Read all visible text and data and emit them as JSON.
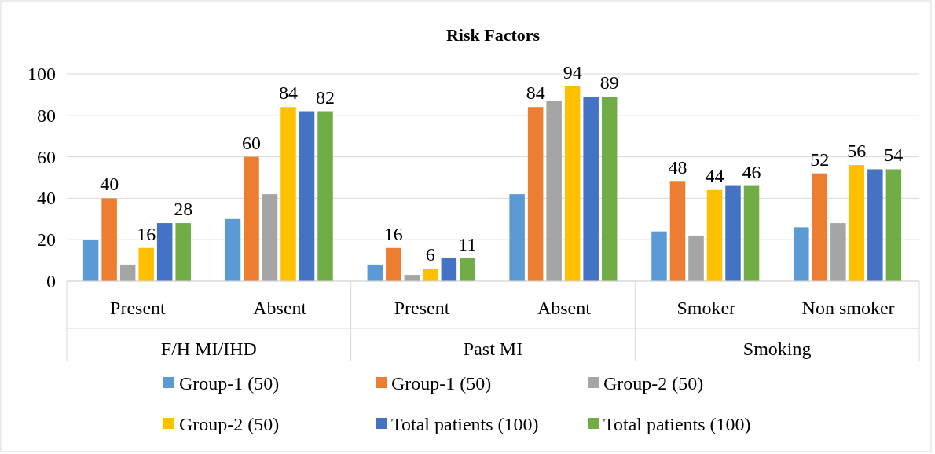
{
  "chart_data": {
    "type": "bar",
    "title": "Risk Factors",
    "categories": [
      "Present",
      "Absent",
      "Present",
      "Absent",
      "Smoker",
      "Non smoker"
    ],
    "annotations": [
      "F/H MI/IHD",
      "Past MI",
      "Smoking"
    ],
    "series": [
      {
        "name": "Group-1 (50)",
        "color": "#5b9bd5",
        "values": [
          20,
          30,
          8,
          42,
          24,
          26
        ]
      },
      {
        "name": "Group-1 (50)",
        "color": "#ed7d31",
        "values": [
          40,
          60,
          16,
          84,
          48,
          52
        ],
        "value_labels": [
          "40",
          "60",
          "16",
          "84",
          "48",
          "52"
        ]
      },
      {
        "name": "Group-2 (50)",
        "color": "#a5a5a5",
        "values": [
          8,
          42,
          3,
          87,
          22,
          28
        ]
      },
      {
        "name": "Group-2 (50)",
        "color": "#ffc000",
        "values": [
          16,
          84,
          6,
          94,
          44,
          56
        ],
        "value_labels": [
          "16",
          "84",
          "6",
          "94",
          "44",
          "56"
        ]
      },
      {
        "name": "Total patients (100)",
        "color": "#4472c4",
        "values": [
          28,
          82,
          11,
          89,
          46,
          54
        ]
      },
      {
        "name": "Total patients (100)",
        "color": "#70ad47",
        "values": [
          28,
          82,
          11,
          89,
          46,
          54
        ],
        "value_labels": [
          "28",
          "82",
          "11",
          "89",
          "46",
          "54"
        ]
      }
    ],
    "ylim": [
      0,
      100
    ],
    "yticks": [
      0,
      20,
      40,
      60,
      80,
      100
    ],
    "grid": "y",
    "legend": "bottom"
  }
}
